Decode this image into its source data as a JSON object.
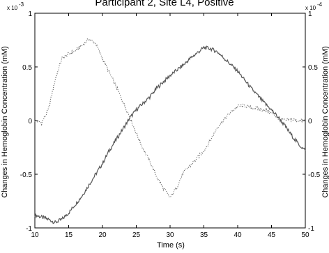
{
  "chart_data": {
    "type": "line",
    "title": "Participant 2, Site L4, Positive",
    "xlabel": "Time (s)",
    "ylabel_left": "Changes in Hemoglobin Concentration (mM)",
    "ylabel_right": "Changes in Hemoglobin Concentration (mM)",
    "left_multiplier": "x 10^-3",
    "right_multiplier": "x 10^-4",
    "xlim": [
      10,
      50
    ],
    "ylim": [
      -1,
      1
    ],
    "x_ticks": [
      "10",
      "15",
      "20",
      "25",
      "30",
      "35",
      "40",
      "45",
      "50"
    ],
    "y_ticks_left": [
      "-1",
      "-0.5",
      "0",
      "0.5",
      "1"
    ],
    "y_ticks_right": [
      "-1",
      "-0.5",
      "0",
      "0.5",
      "1"
    ],
    "grid": false,
    "series": [
      {
        "style": "solid",
        "color": "#555555",
        "x": [
          10,
          11,
          12,
          13,
          14,
          15,
          16,
          17,
          18,
          19,
          20,
          21,
          22,
          23,
          24,
          25,
          26,
          27,
          28,
          29,
          30,
          31,
          32,
          33,
          34,
          35,
          36,
          37,
          38,
          39,
          40,
          41,
          42,
          43,
          44,
          45,
          46,
          47,
          48,
          49,
          50
        ],
        "y": [
          -0.88,
          -0.9,
          -0.92,
          -0.95,
          -0.92,
          -0.86,
          -0.78,
          -0.7,
          -0.6,
          -0.5,
          -0.4,
          -0.28,
          -0.18,
          -0.08,
          0.02,
          0.1,
          0.16,
          0.22,
          0.3,
          0.36,
          0.42,
          0.47,
          0.52,
          0.58,
          0.63,
          0.68,
          0.67,
          0.64,
          0.58,
          0.52,
          0.46,
          0.38,
          0.3,
          0.23,
          0.16,
          0.1,
          0.03,
          -0.05,
          -0.14,
          -0.22,
          -0.28
        ]
      },
      {
        "style": "dotted",
        "color": "#666666",
        "x": [
          10,
          11,
          12,
          13,
          14,
          15,
          16,
          17,
          18,
          19,
          20,
          21,
          22,
          23,
          24,
          25,
          26,
          27,
          28,
          29,
          30,
          31,
          32,
          33,
          34,
          35,
          36,
          37,
          38,
          39,
          40,
          41,
          42,
          43,
          44,
          45,
          46,
          47,
          48,
          49,
          50
        ],
        "y": [
          0.0,
          -0.02,
          0.1,
          0.38,
          0.58,
          0.62,
          0.65,
          0.7,
          0.76,
          0.72,
          0.58,
          0.45,
          0.32,
          0.18,
          0.04,
          -0.12,
          -0.26,
          -0.38,
          -0.52,
          -0.63,
          -0.72,
          -0.62,
          -0.48,
          -0.42,
          -0.35,
          -0.28,
          -0.18,
          -0.06,
          0.01,
          0.08,
          0.13,
          0.14,
          0.12,
          0.11,
          0.1,
          0.07,
          0.02,
          0.0,
          0.01,
          0.0,
          0.0
        ]
      }
    ]
  }
}
